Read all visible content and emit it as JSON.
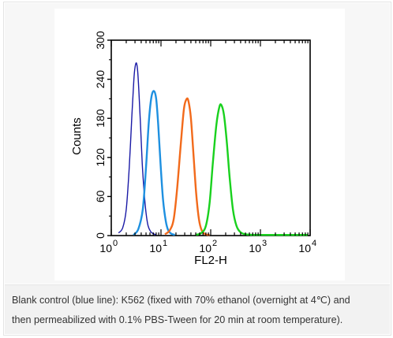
{
  "chart_data": {
    "type": "line",
    "xlabel": "FL2-H",
    "ylabel": "Counts",
    "x_scale": "log",
    "xlim": [
      1,
      10000
    ],
    "ylim": [
      0,
      300
    ],
    "x_ticks": [
      {
        "value": 1,
        "base": "10",
        "exp": "0"
      },
      {
        "value": 10,
        "base": "10",
        "exp": "1"
      },
      {
        "value": 100,
        "base": "10",
        "exp": "2"
      },
      {
        "value": 1000,
        "base": "10",
        "exp": "3"
      },
      {
        "value": 10000,
        "base": "10",
        "exp": "4"
      }
    ],
    "y_ticks": [
      "0",
      "60",
      "120",
      "180",
      "240",
      "300"
    ],
    "grid": false,
    "series": [
      {
        "color": "#1a1aa6",
        "peak_x": 3.2,
        "peak_y": 265,
        "x": [
          1.4,
          1.7,
          2.0,
          2.3,
          2.6,
          2.85,
          3.0,
          3.2,
          3.4,
          3.6,
          3.9,
          4.2,
          4.6,
          5.0,
          5.5,
          6.2,
          7.0,
          8.0
        ],
        "y": [
          4,
          12,
          40,
          105,
          185,
          240,
          258,
          265,
          252,
          220,
          165,
          110,
          65,
          35,
          15,
          6,
          3,
          1
        ]
      },
      {
        "color": "#1e90e0",
        "peak_x": 7.2,
        "peak_y": 222,
        "x": [
          2.8,
          3.5,
          4.3,
          5.0,
          5.7,
          6.4,
          7.2,
          8.0,
          8.8,
          9.8,
          11,
          12.5,
          14,
          16,
          19
        ],
        "y": [
          1,
          10,
          40,
          105,
          175,
          212,
          222,
          210,
          170,
          110,
          55,
          22,
          8,
          3,
          1
        ]
      },
      {
        "color": "#f26a1b",
        "peak_x": 35,
        "peak_y": 210,
        "x": [
          12,
          15,
          18,
          21,
          25,
          29,
          33,
          36,
          40,
          45,
          51,
          58,
          66,
          78,
          95
        ],
        "y": [
          2,
          8,
          25,
          70,
          140,
          195,
          210,
          205,
          180,
          125,
          65,
          25,
          8,
          2,
          1
        ]
      },
      {
        "color": "#19d11e",
        "peak_x": 160,
        "peak_y": 200,
        "x": [
          50,
          65,
          80,
          95,
          110,
          130,
          150,
          165,
          185,
          210,
          240,
          280,
          330,
          400,
          500,
          700,
          1200,
          3000,
          9000
        ],
        "y": [
          1,
          4,
          15,
          50,
          110,
          170,
          198,
          200,
          185,
          145,
          90,
          40,
          15,
          5,
          2,
          1,
          1,
          1,
          1
        ]
      }
    ]
  },
  "caption": {
    "line1": "Blank control (blue line): K562 (fixed with 70% ethanol (overnight at 4℃) and",
    "line2": "then permeabilized with 0.1% PBS-Tween for 20 min at room temperature)."
  }
}
